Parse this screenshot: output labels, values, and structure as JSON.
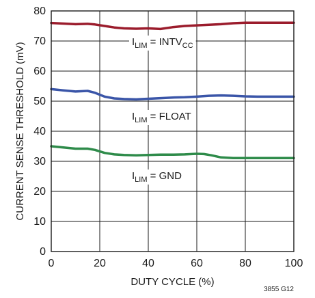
{
  "chart_data": {
    "type": "line",
    "xlabel": "DUTY CYCLE (%)",
    "ylabel": "CURRENT SENSE THRESHOLD (mV)",
    "xlim": [
      0,
      100
    ],
    "ylim": [
      0,
      80
    ],
    "xticks": [
      0,
      20,
      40,
      60,
      80,
      100
    ],
    "yticks": [
      0,
      10,
      20,
      30,
      40,
      50,
      60,
      70,
      80
    ],
    "xtick_labels": [
      "0",
      "20",
      "40",
      "60",
      "80",
      "100"
    ],
    "ytick_labels": [
      "0",
      "10",
      "20",
      "30",
      "40",
      "50",
      "60",
      "70",
      "80"
    ],
    "grid": true,
    "series": [
      {
        "name": "ILIM = INTVCC",
        "label_main": "I",
        "label_sub": "LIM",
        "label_rest": " = INTV",
        "label_sub2": "CC",
        "color": "#9b1c2c",
        "x": [
          0,
          5,
          10,
          15,
          18,
          22,
          26,
          30,
          35,
          40,
          45,
          50,
          55,
          60,
          65,
          70,
          75,
          80,
          85,
          90,
          95,
          100
        ],
        "y": [
          76,
          75.8,
          75.6,
          75.7,
          75.5,
          75,
          74.5,
          74.2,
          74.1,
          74.2,
          74.0,
          74.6,
          75.0,
          75.2,
          75.4,
          75.6,
          75.9,
          76.1,
          76.1,
          76.1,
          76.1,
          76.1
        ]
      },
      {
        "name": "ILIM = FLOAT",
        "label_main": "I",
        "label_sub": "LIM",
        "label_rest": " = FLOAT",
        "label_sub2": "",
        "color": "#3a55a8",
        "x": [
          0,
          5,
          10,
          15,
          18,
          22,
          26,
          30,
          35,
          40,
          45,
          50,
          55,
          60,
          65,
          70,
          75,
          80,
          85,
          90,
          95,
          100
        ],
        "y": [
          54,
          53.6,
          53.2,
          53.4,
          52.8,
          51.5,
          50.9,
          50.7,
          50.6,
          50.8,
          51.0,
          51.2,
          51.3,
          51.5,
          51.8,
          51.9,
          51.8,
          51.6,
          51.5,
          51.5,
          51.5,
          51.5
        ]
      },
      {
        "name": "ILIM = GND",
        "label_main": "I",
        "label_sub": "LIM",
        "label_rest": " = GND",
        "label_sub2": "",
        "color": "#2e8b4a",
        "x": [
          0,
          5,
          10,
          15,
          18,
          22,
          26,
          30,
          35,
          40,
          45,
          50,
          55,
          60,
          63,
          66,
          70,
          75,
          80,
          85,
          90,
          95,
          100
        ],
        "y": [
          35,
          34.6,
          34.2,
          34.2,
          33.8,
          32.8,
          32.3,
          32.1,
          32.0,
          32.1,
          32.2,
          32.2,
          32.3,
          32.5,
          32.4,
          32.0,
          31.3,
          31.1,
          31.1,
          31.1,
          31.1,
          31.1,
          31.1
        ]
      }
    ],
    "figure_code": "3855 G12"
  }
}
